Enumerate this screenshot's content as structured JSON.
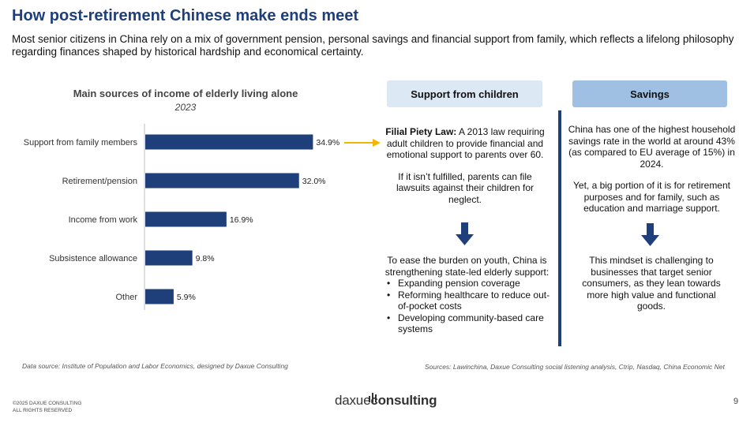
{
  "header": {
    "title": "How post-retirement Chinese make ends meet",
    "subtitle": "Most senior citizens in China rely on a mix of government pension, personal savings and financial support from family, which reflects a lifelong philosophy regarding finances shaped by historical hardship and economical certainty."
  },
  "chart_data": {
    "type": "bar",
    "orientation": "horizontal",
    "title": "Main sources of income of elderly living alone",
    "subtitle": "2023",
    "categories": [
      "Support from family members",
      "Retirement/pension",
      "Income from work",
      "Subsistence allowance",
      "Other"
    ],
    "values": [
      34.9,
      32.0,
      16.9,
      9.8,
      5.9
    ],
    "value_labels": [
      "34.9%",
      "32.0%",
      "16.9%",
      "9.8%",
      "5.9%"
    ],
    "xlabel": "",
    "ylabel": "",
    "xlim": [
      0,
      35
    ],
    "bar_color": "#1e3f7a",
    "grid": false
  },
  "children": {
    "header": "Support from children",
    "law_title": "Filial Piety Law:",
    "law_text": " A 2013 law requiring adult children to provide financial and emotional support to parents over 60.",
    "lawsuit_text": "If it isn’t fulfilled, parents can file lawsuits against their children for neglect.",
    "intro": "To ease the burden on youth, China is strengthening state-led elderly support:",
    "bullets": [
      "Expanding pension coverage",
      "Reforming healthcare to reduce out-of-pocket costs",
      "Developing community-based care systems"
    ]
  },
  "savings": {
    "header": "Savings",
    "text1": "China has one of the highest household savings rate in the world at around 43% (as compared to EU average of 15%) in 2024.",
    "text2": "Yet, a big portion of it is for retirement purposes and for family, such as education and marriage support.",
    "text3": "This mindset is challenging to businesses that target senior consumers, as they lean towards more high value and functional goods."
  },
  "footer": {
    "source_left": "Data source: Institute of Population and Labor Economics, designed by Daxue Consulting",
    "source_right": "Sources: Lawinchina, Daxue Consulting social listening analysis, Ctrip, Nasdaq, China Economic Net",
    "copyright_line1": "©2025 DAXUE CONSULTING",
    "copyright_line2": "ALL RIGHTS RESERVED",
    "logo_part1": "daxue",
    "logo_part2": "consulting",
    "page_number": "9"
  },
  "colors": {
    "title_blue": "#1e3f7a",
    "bar_blue": "#1e3f7a",
    "arrow_yellow": "#f2b800",
    "header_light": "#dde8f5",
    "header_mid": "#9fc0e3"
  }
}
